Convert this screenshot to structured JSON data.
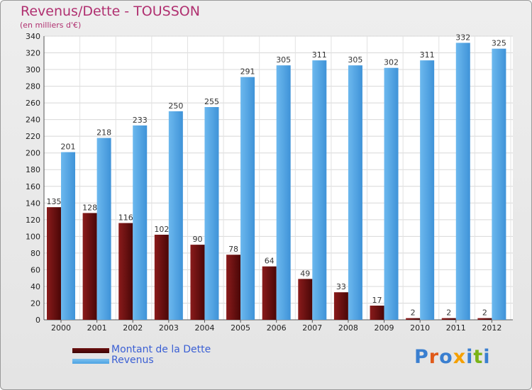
{
  "title": "Revenus/Dette - TOUSSON",
  "subtitle": "(en milliers d'€)",
  "colors": {
    "dette": "#6b0f0f",
    "revenus": "#4da3e3",
    "title": "#b03070",
    "legend_text": "#3a5fd4"
  },
  "legend": [
    {
      "label": "Montant de la Dette",
      "color": "#6b0f0f"
    },
    {
      "label": "Revenus",
      "color": "#4da3e3"
    }
  ],
  "logo": "Proxiti",
  "chart_data": {
    "type": "bar",
    "title": "Revenus/Dette - TOUSSON",
    "ylabel": "(en milliers d'€)",
    "xlabel": "",
    "ylim": [
      0,
      340
    ],
    "yticks": [
      0,
      20,
      40,
      60,
      80,
      100,
      120,
      140,
      160,
      180,
      200,
      220,
      240,
      260,
      280,
      300,
      320,
      340
    ],
    "grid": true,
    "legend_position": "bottom-left",
    "categories": [
      "2000",
      "2001",
      "2002",
      "2003",
      "2004",
      "2005",
      "2006",
      "2007",
      "2008",
      "2009",
      "2010",
      "2011",
      "2012"
    ],
    "series": [
      {
        "name": "Montant de la Dette",
        "values": [
          135,
          128,
          116,
          102,
          90,
          78,
          64,
          49,
          33,
          17,
          2,
          2,
          2
        ]
      },
      {
        "name": "Revenus",
        "values": [
          201,
          218,
          233,
          250,
          255,
          291,
          305,
          311,
          305,
          302,
          311,
          332,
          325
        ]
      }
    ]
  }
}
